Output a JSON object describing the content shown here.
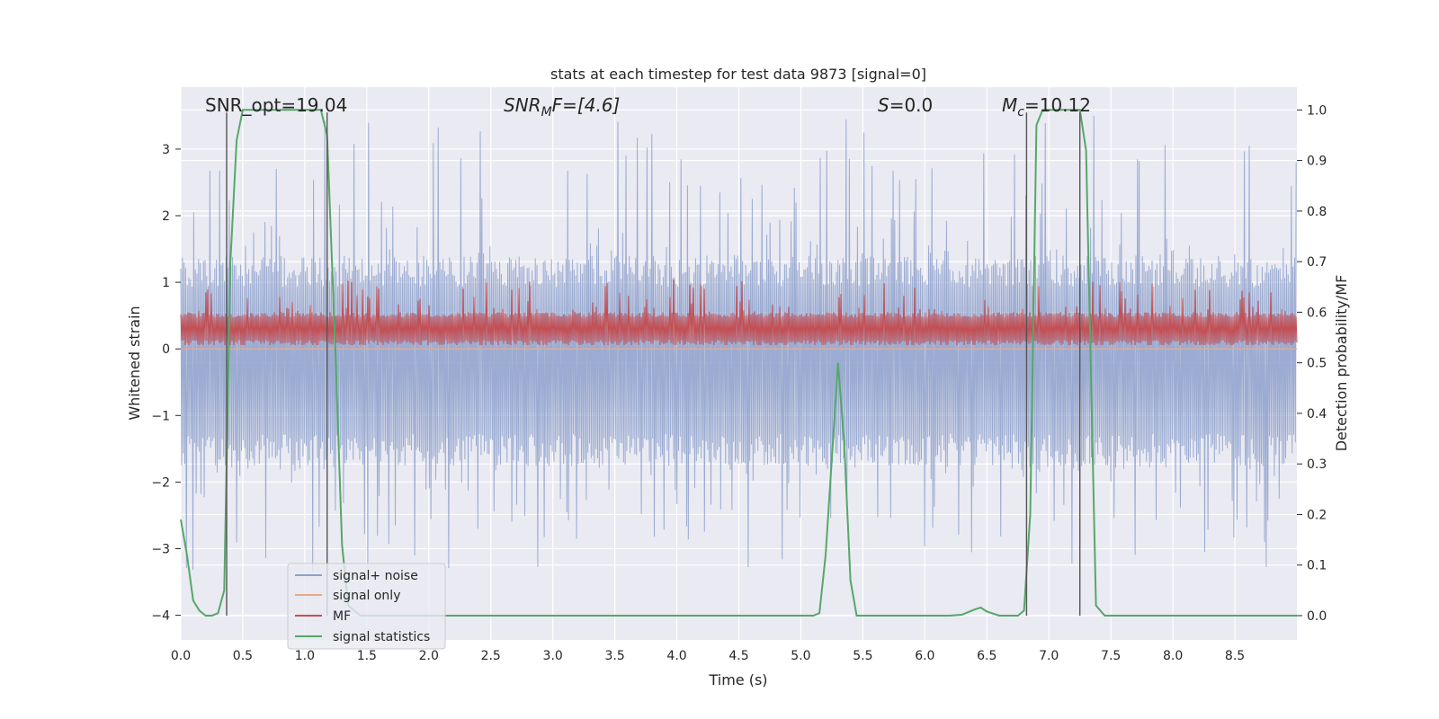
{
  "chart_data": {
    "type": "line",
    "title": "stats at each timestep for test data 9873 [signal=0]",
    "xlabel": "Time (s)",
    "ylabel": "Whitened strain",
    "y2label": "Detection probability/MF",
    "xlim": [
      0.0,
      9.0
    ],
    "ylim": [
      -4.37,
      3.93
    ],
    "y2lim": [
      -0.048,
      1.045
    ],
    "x_ticks": [
      "0.0",
      "0.5",
      "1.0",
      "1.5",
      "2.0",
      "2.5",
      "3.0",
      "3.5",
      "4.0",
      "4.5",
      "5.0",
      "5.5",
      "6.0",
      "6.5",
      "7.0",
      "7.5",
      "8.0",
      "8.5"
    ],
    "y_ticks": [
      "3",
      "2",
      "1",
      "0",
      "−1",
      "−2",
      "−3",
      "−4"
    ],
    "y2_ticks": [
      "1.0",
      "0.9",
      "0.8",
      "0.7",
      "0.6",
      "0.5",
      "0.4",
      "0.3",
      "0.2",
      "0.1",
      "0.0"
    ],
    "annotations": {
      "snr_opt": "SNR_opt=19.04",
      "snr_mf_base": "SNR",
      "snr_mf_sub": "M",
      "snr_mf_rest": "F=[4.6]",
      "s_label": "S",
      "s_value": "=0.0",
      "mc_base": "M",
      "mc_sub": "c",
      "mc_value": "=10.12"
    },
    "vertical_markers_s": [
      0.37,
      1.18,
      6.82,
      7.25
    ],
    "series": [
      {
        "name": "signal+ noise",
        "axis": "left",
        "color": "#8da0cb",
        "kind": "noise",
        "band": [
          -1.75,
          1.4
        ],
        "peak_range": [
          -3.4,
          3.55
        ]
      },
      {
        "name": "signal only",
        "axis": "left",
        "color": "#e8a888",
        "values": [
          [
            0.0,
            0.0
          ],
          [
            9.0,
            0.0
          ]
        ]
      },
      {
        "name": "MF",
        "axis": "right",
        "color": "#c44e52",
        "kind": "noise",
        "band": [
          0.535,
          0.6
        ],
        "peak_range": [
          0.535,
          0.665
        ]
      },
      {
        "name": "signal statistics",
        "axis": "right",
        "color": "#55a868",
        "values": [
          [
            0.0,
            0.19
          ],
          [
            0.05,
            0.12
          ],
          [
            0.1,
            0.03
          ],
          [
            0.15,
            0.01
          ],
          [
            0.2,
            0.0
          ],
          [
            0.25,
            0.0
          ],
          [
            0.3,
            0.005
          ],
          [
            0.35,
            0.05
          ],
          [
            0.4,
            0.7
          ],
          [
            0.45,
            0.94
          ],
          [
            0.5,
            1.0
          ],
          [
            0.6,
            1.0
          ],
          [
            1.0,
            1.0
          ],
          [
            1.13,
            1.0
          ],
          [
            1.18,
            0.95
          ],
          [
            1.25,
            0.5
          ],
          [
            1.3,
            0.14
          ],
          [
            1.35,
            0.02
          ],
          [
            1.45,
            0.0
          ],
          [
            5.0,
            0.0
          ],
          [
            5.1,
            0.0
          ],
          [
            5.15,
            0.005
          ],
          [
            5.2,
            0.12
          ],
          [
            5.3,
            0.5
          ],
          [
            5.35,
            0.34
          ],
          [
            5.4,
            0.07
          ],
          [
            5.45,
            0.0
          ],
          [
            5.55,
            0.0
          ],
          [
            6.2,
            0.0
          ],
          [
            6.3,
            0.002
          ],
          [
            6.4,
            0.012
          ],
          [
            6.45,
            0.016
          ],
          [
            6.5,
            0.008
          ],
          [
            6.6,
            0.0
          ],
          [
            6.75,
            0.0
          ],
          [
            6.8,
            0.01
          ],
          [
            6.85,
            0.2
          ],
          [
            6.9,
            0.97
          ],
          [
            6.95,
            1.0
          ],
          [
            7.25,
            1.0
          ],
          [
            7.3,
            0.92
          ],
          [
            7.38,
            0.02
          ],
          [
            7.45,
            0.0
          ],
          [
            9.0,
            0.0
          ]
        ]
      }
    ],
    "legend": {
      "placement": "lower-left",
      "entries": [
        "signal+ noise",
        "signal only",
        "MF",
        "signal statistics"
      ]
    },
    "grid": true,
    "background": "#eaeaf2"
  }
}
